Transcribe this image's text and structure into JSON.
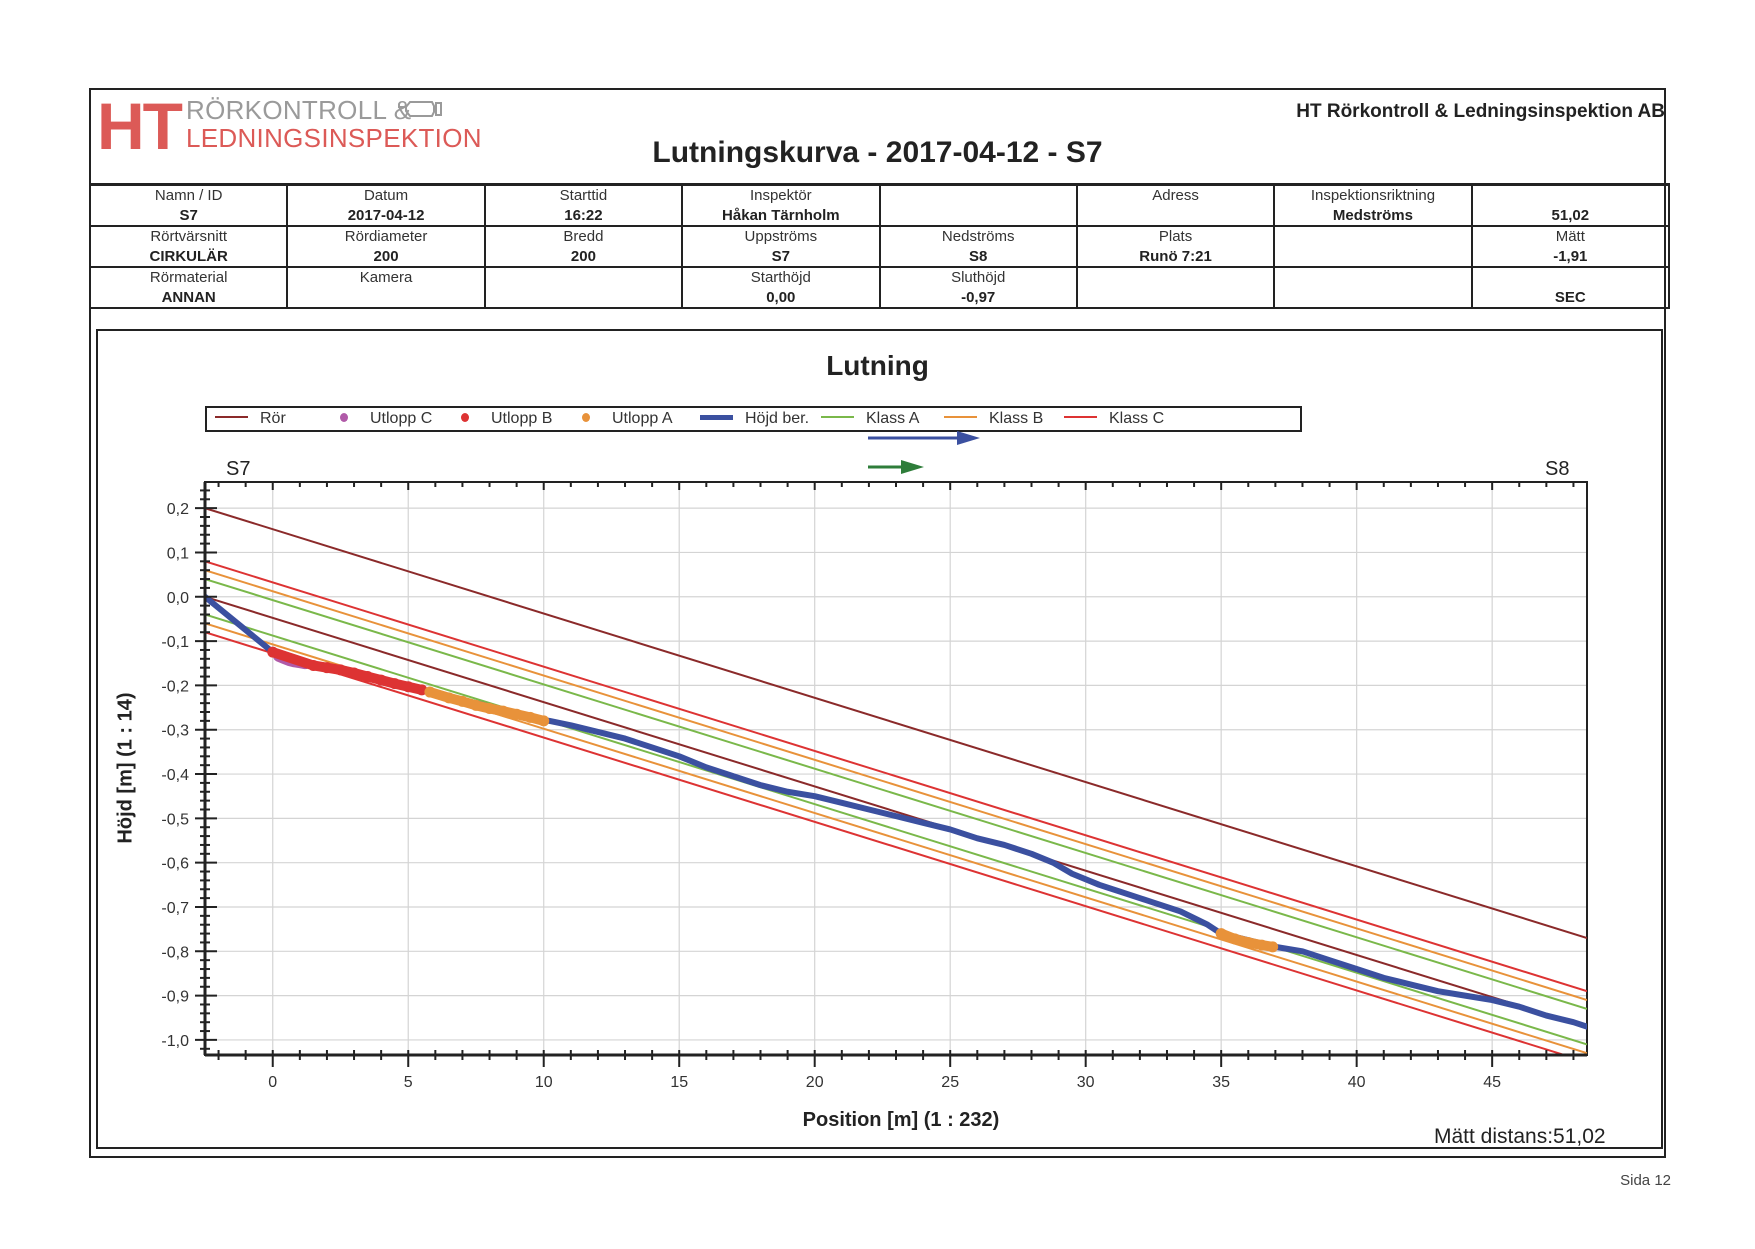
{
  "header": {
    "logo": {
      "mark": "HT",
      "line1": "RÖRKONTROLL &",
      "line2": "LEDNINGSINSPEKTION",
      "icon": "camera-pipe-icon"
    },
    "company": "HT Rörkontroll & Ledningsinspektion AB",
    "title": "Lutningskurva - 2017-04-12 - S7"
  },
  "info_table": [
    [
      {
        "label": "Namn / ID",
        "value": "S7"
      },
      {
        "label": "Datum",
        "value": "2017-04-12"
      },
      {
        "label": "Starttid",
        "value": "16:22"
      },
      {
        "label": "Inspektör",
        "value": "Håkan Tärnholm"
      },
      {
        "label": "",
        "value": ""
      },
      {
        "label": "Adress",
        "value": ""
      },
      {
        "label": "Inspektionsriktning",
        "value": "Medströms"
      },
      {
        "label": "",
        "value": "51,02"
      }
    ],
    [
      {
        "label": "Rörtvärsnitt",
        "value": "CIRKULÄR"
      },
      {
        "label": "Rördiameter",
        "value": "200"
      },
      {
        "label": "Bredd",
        "value": "200"
      },
      {
        "label": "Uppströms",
        "value": "S7"
      },
      {
        "label": "Nedströms",
        "value": "S8"
      },
      {
        "label": "Plats",
        "value": "Runö 7:21"
      },
      {
        "label": "",
        "value": ""
      },
      {
        "label": "Mätt",
        "value": "-1,91"
      }
    ],
    [
      {
        "label": "Rörmaterial",
        "value": "ANNAN"
      },
      {
        "label": "Kamera",
        "value": ""
      },
      {
        "label": "",
        "value": ""
      },
      {
        "label": "Starthöjd",
        "value": "0,00"
      },
      {
        "label": "Sluthöjd",
        "value": "-0,97"
      },
      {
        "label": "",
        "value": ""
      },
      {
        "label": "",
        "value": ""
      },
      {
        "label": "",
        "value": "SEC"
      }
    ]
  ],
  "chart_data": {
    "type": "line",
    "title": "Lutning",
    "xlabel": "Position [m] (1 : 232)",
    "ylabel": "Höjd [m] (1 : 14)",
    "xlim": [
      -2.5,
      48.5
    ],
    "ylim": [
      -1.034,
      0.259
    ],
    "grid": true,
    "legend_position": "top",
    "start_node": "S7",
    "end_node": "S8",
    "x_ticks": [
      0,
      5,
      10,
      15,
      20,
      25,
      30,
      35,
      40,
      45
    ],
    "x_tick_labels": [
      "0",
      "5",
      "10",
      "15",
      "20",
      "25",
      "30",
      "35",
      "40",
      "45"
    ],
    "y_ticks": [
      0.2,
      0.1,
      0.0,
      -0.1,
      -0.2,
      -0.3,
      -0.4,
      -0.5,
      -0.6,
      -0.7,
      -0.8,
      -0.9,
      -1.0
    ],
    "y_tick_labels": [
      "0,2",
      "0,1",
      "0,0",
      "-0,1",
      "-0,2",
      "-0,3",
      "-0,4",
      "-0,5",
      "-0,6",
      "-0,7",
      "-0,8",
      "-0,9",
      "-1,0"
    ],
    "legend": [
      {
        "name": "Rör",
        "kind": "line",
        "color": "#8b2a2a"
      },
      {
        "name": "Utlopp C",
        "kind": "dot",
        "color": "#b05aa8"
      },
      {
        "name": "Utlopp B",
        "kind": "dot",
        "color": "#dd3333"
      },
      {
        "name": "Utlopp A",
        "kind": "dot",
        "color": "#e8923a"
      },
      {
        "name": "Höjd ber.",
        "kind": "thick",
        "color": "#3b50a0"
      },
      {
        "name": "Klass A",
        "kind": "line",
        "color": "#7ab84a"
      },
      {
        "name": "Klass B",
        "kind": "line",
        "color": "#e8923a"
      },
      {
        "name": "Klass C",
        "kind": "line",
        "color": "#dd3333"
      }
    ],
    "direction_arrows": [
      {
        "name": "flow-direction",
        "color": "#3b50a0"
      },
      {
        "name": "inspection-direction",
        "color": "#2e7d3a"
      }
    ],
    "reference_lines": [
      {
        "name": "Rör",
        "color": "#8b2a2a",
        "x": [
          -2.5,
          48.5
        ],
        "y": [
          0.2,
          -0.77
        ]
      },
      {
        "name": "Rör",
        "color": "#8b2a2a",
        "x": [
          -2.5,
          48.5
        ],
        "y": [
          0.0,
          -0.97
        ]
      },
      {
        "name": "Klass C",
        "color": "#dd3333",
        "x": [
          -2.5,
          48.5
        ],
        "y": [
          0.08,
          -0.89
        ]
      },
      {
        "name": "Klass B",
        "color": "#e8923a",
        "x": [
          -2.5,
          48.5
        ],
        "y": [
          0.06,
          -0.91
        ]
      },
      {
        "name": "Klass A",
        "color": "#7ab84a",
        "x": [
          -2.5,
          48.5
        ],
        "y": [
          0.04,
          -0.93
        ]
      },
      {
        "name": "Klass A",
        "color": "#7ab84a",
        "x": [
          -2.5,
          48.5
        ],
        "y": [
          -0.04,
          -1.01
        ]
      },
      {
        "name": "Klass B",
        "color": "#e8923a",
        "x": [
          -2.5,
          48.5
        ],
        "y": [
          -0.06,
          -1.03
        ]
      },
      {
        "name": "Klass C",
        "color": "#dd3333",
        "x": [
          -2.5,
          48.5
        ],
        "y": [
          -0.08,
          -1.05
        ]
      }
    ],
    "series": [
      {
        "name": "Höjd ber.",
        "color": "#3b50a0",
        "x": [
          -2.5,
          -1.5,
          -0.5,
          0.0,
          0.5,
          1.0,
          1.5,
          2.5,
          3.5,
          4.5,
          5.5,
          6.5,
          7.5,
          8.5,
          9.5,
          10.2,
          11.0,
          12.0,
          13.0,
          14.0,
          15.0,
          16.0,
          17.0,
          18.0,
          19.0,
          20.0,
          21.0,
          22.0,
          23.0,
          24.0,
          25.0,
          26.0,
          27.0,
          28.0,
          28.8,
          29.5,
          30.5,
          31.5,
          32.5,
          33.5,
          34.5,
          35.0,
          36.0,
          37.0,
          38.0,
          39.0,
          40.0,
          41.0,
          42.0,
          43.0,
          44.0,
          45.0,
          46.0,
          47.0,
          48.0,
          48.5
        ],
        "y": [
          0.0,
          -0.05,
          -0.1,
          -0.125,
          -0.14,
          -0.148,
          -0.155,
          -0.165,
          -0.18,
          -0.195,
          -0.21,
          -0.225,
          -0.24,
          -0.255,
          -0.27,
          -0.28,
          -0.29,
          -0.305,
          -0.32,
          -0.34,
          -0.36,
          -0.385,
          -0.405,
          -0.425,
          -0.44,
          -0.45,
          -0.465,
          -0.48,
          -0.495,
          -0.51,
          -0.525,
          -0.545,
          -0.56,
          -0.58,
          -0.6,
          -0.625,
          -0.65,
          -0.67,
          -0.69,
          -0.71,
          -0.74,
          -0.76,
          -0.775,
          -0.79,
          -0.8,
          -0.82,
          -0.84,
          -0.86,
          -0.875,
          -0.89,
          -0.9,
          -0.91,
          -0.925,
          -0.945,
          -0.96,
          -0.97
        ]
      },
      {
        "name": "Utlopp C",
        "color": "#b05aa8",
        "x": [
          0.2,
          0.4,
          0.6,
          0.8,
          1.0,
          1.2
        ],
        "y": [
          -0.135,
          -0.14,
          -0.145,
          -0.148,
          -0.15,
          -0.152
        ]
      },
      {
        "name": "Utlopp B",
        "color": "#dd3333",
        "x": [
          0.0,
          1.5,
          2.0,
          2.5,
          3.0,
          3.5,
          4.0,
          4.5,
          5.0,
          5.5
        ],
        "y": [
          -0.125,
          -0.155,
          -0.16,
          -0.165,
          -0.172,
          -0.18,
          -0.188,
          -0.196,
          -0.203,
          -0.21
        ],
        "marker_only": true
      },
      {
        "name": "Utlopp A",
        "color": "#e8923a",
        "x": [
          5.8,
          6.5,
          7.0,
          7.5,
          8.0,
          8.5,
          9.0,
          9.5,
          10.0,
          35.0,
          35.5,
          36.0,
          36.5,
          36.9
        ],
        "y": [
          -0.215,
          -0.228,
          -0.236,
          -0.245,
          -0.252,
          -0.258,
          -0.265,
          -0.272,
          -0.28,
          -0.76,
          -0.772,
          -0.78,
          -0.786,
          -0.79
        ],
        "marker_only": true
      }
    ]
  },
  "footer": {
    "distance": "Mätt  distans:51,02",
    "page": "Sida 12"
  }
}
